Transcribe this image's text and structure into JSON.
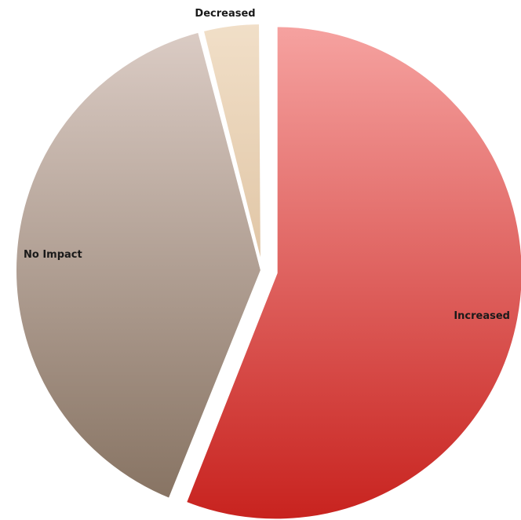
{
  "chart_data": {
    "type": "pie",
    "title": "",
    "legend": "none",
    "start_angle_deg": 0,
    "direction": "clockwise",
    "slices": [
      {
        "label": "Increased",
        "value": 56,
        "exploded": true,
        "color_top": "#f6a3a1",
        "color_bottom": "#c8231f"
      },
      {
        "label": "No Impact",
        "value": 40,
        "exploded": false,
        "color_top": "#dccdc6",
        "color_bottom": "#84705f"
      },
      {
        "label": "Decreased",
        "value": 4,
        "exploded": false,
        "color_top": "#f1dfc8",
        "color_bottom": "#cfab81"
      }
    ]
  }
}
